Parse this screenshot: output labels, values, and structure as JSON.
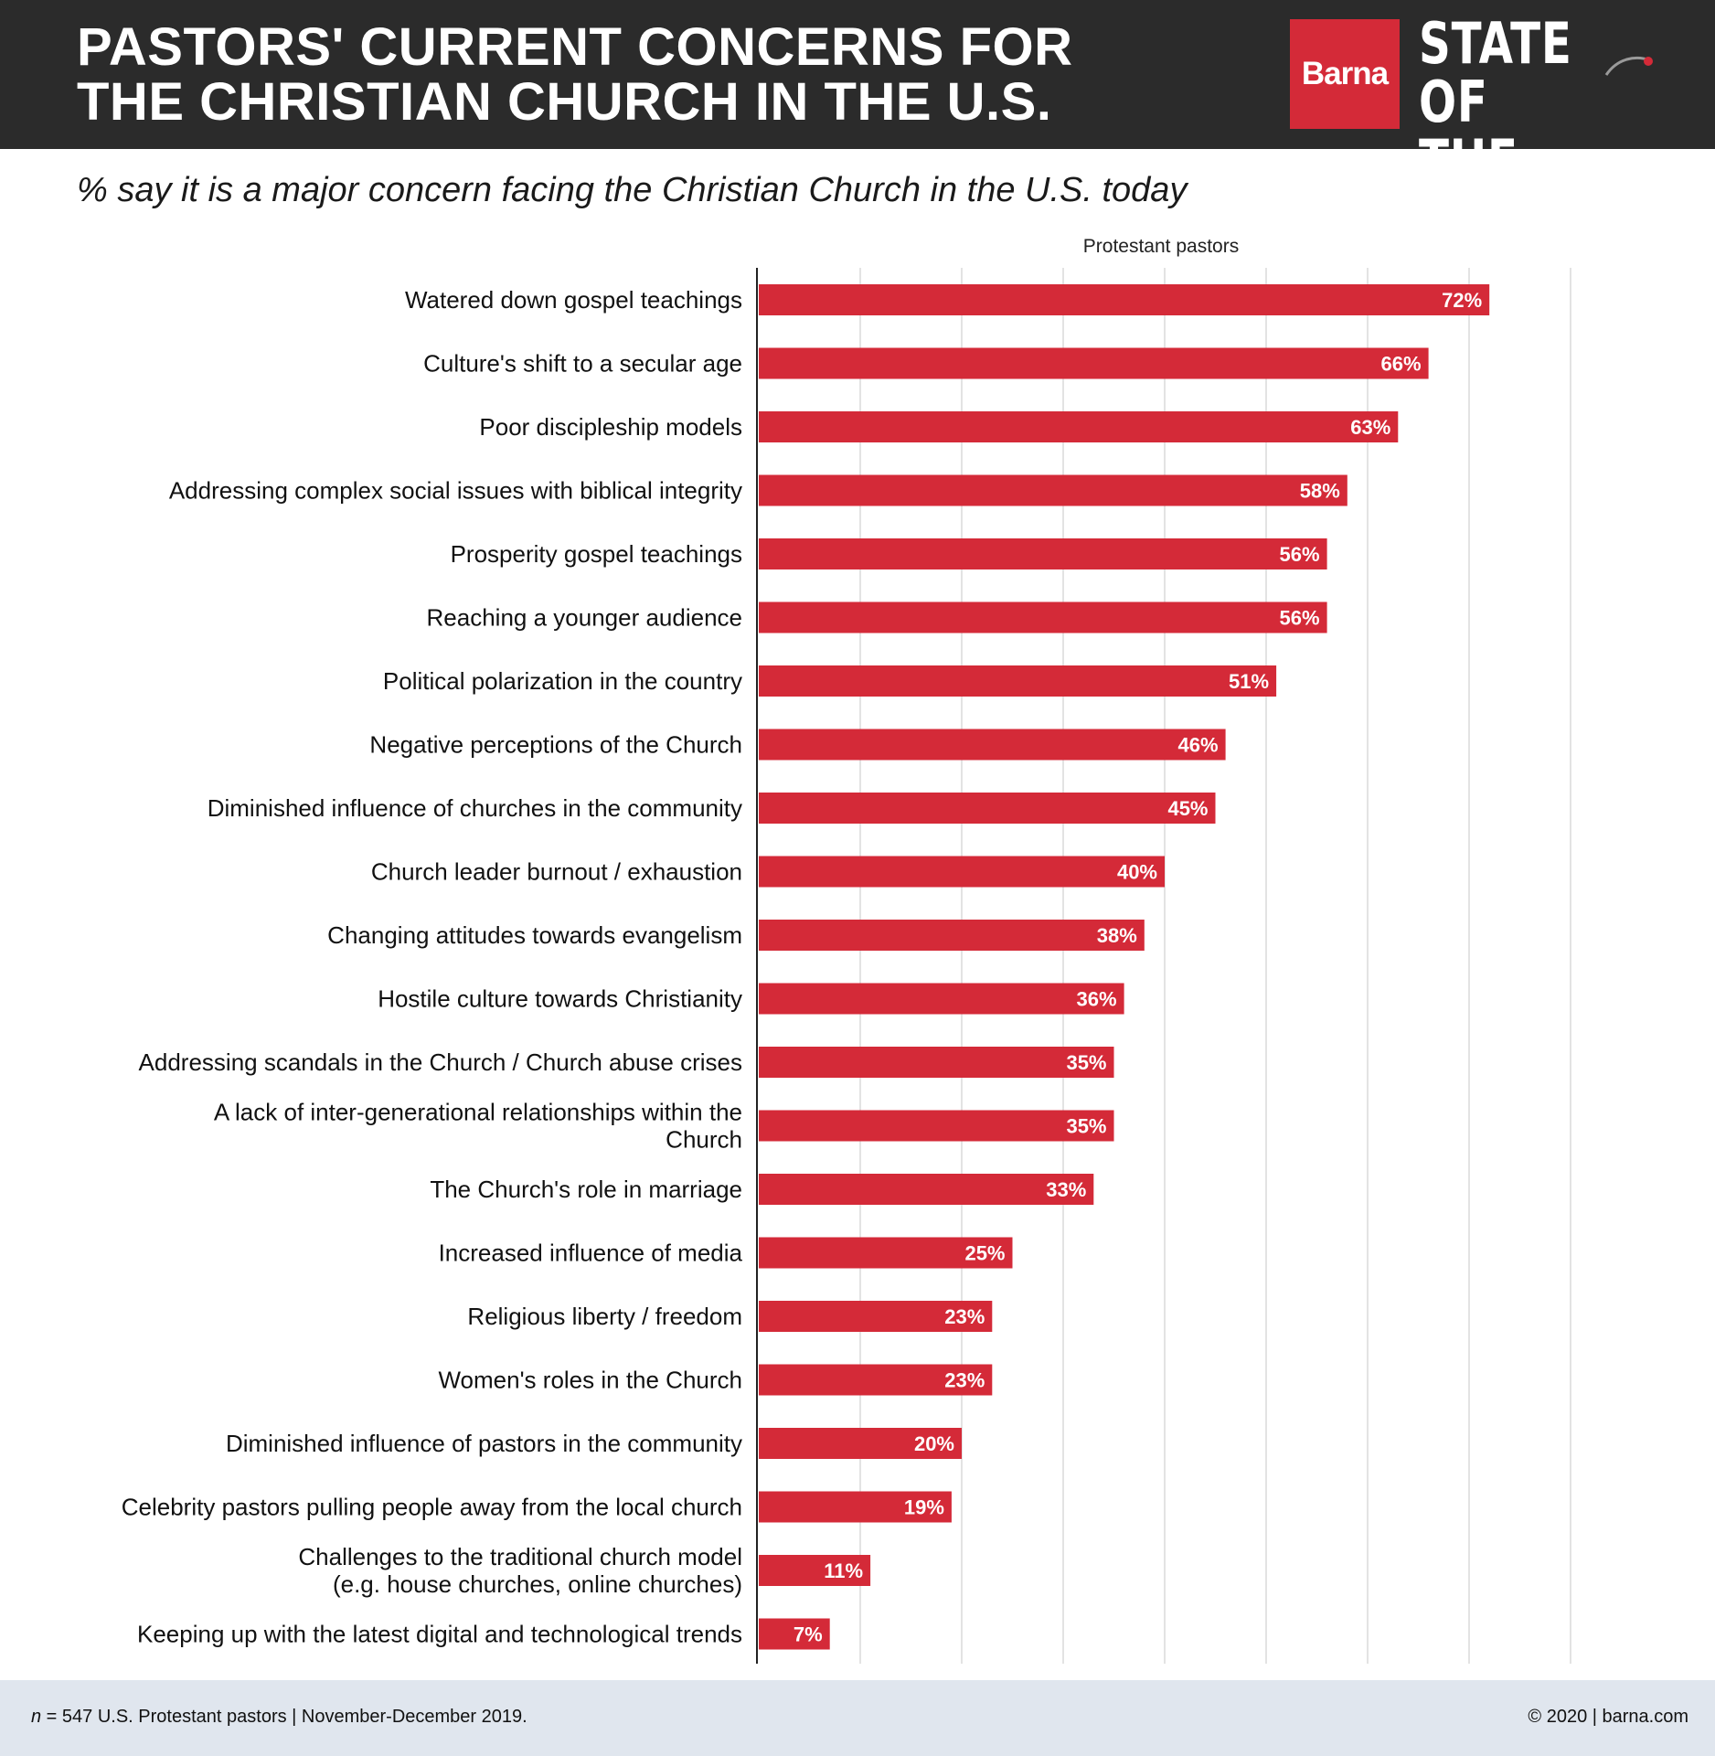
{
  "header": {
    "title_line1": "PASTORS' CURRENT CONCERNS FOR",
    "title_line2": "THE CHRISTIAN CHURCH IN THE U.S.",
    "logo_brand": "Barna",
    "report_line1": "STATE OF",
    "report_line2": "THE CHURCH"
  },
  "subtitle": "% say it is a major concern facing the Christian Church in the U.S. today",
  "chart_data": {
    "type": "bar",
    "orientation": "horizontal",
    "series": [
      {
        "name": "Protestant pastors",
        "values": [
          72,
          66,
          63,
          58,
          56,
          56,
          51,
          46,
          45,
          40,
          38,
          36,
          35,
          35,
          33,
          25,
          23,
          23,
          20,
          19,
          11,
          7
        ]
      }
    ],
    "categories": [
      "Watered down gospel teachings",
      "Culture's shift to a secular age",
      "Poor discipleship models",
      "Addressing complex social issues with biblical integrity",
      "Prosperity gospel teachings",
      "Reaching a younger audience",
      "Political polarization in the country",
      "Negative perceptions of the Church",
      "Diminished influence of churches in the community",
      "Church leader burnout / exhaustion",
      "Changing attitudes towards evangelism",
      "Hostile culture towards Christianity",
      "Addressing scandals in the Church / Church abuse crises",
      "A lack of inter-generational relationships within the Church",
      "The Church's role in marriage",
      "Increased influence of media",
      "Religious liberty / freedom",
      "Women's roles in the Church",
      "Diminished influence of pastors in the community",
      "Celebrity pastors pulling people away from the local church",
      "Challenges to the traditional church model (e.g. house churches, online churches)",
      "Keeping up with the latest digital and technological trends"
    ],
    "category_lines": [
      [
        "Watered down gospel teachings"
      ],
      [
        "Culture's shift to a secular age"
      ],
      [
        "Poor discipleship models"
      ],
      [
        "Addressing complex social issues with biblical integrity"
      ],
      [
        "Prosperity gospel teachings"
      ],
      [
        "Reaching a younger audience"
      ],
      [
        "Political polarization in the country"
      ],
      [
        "Negative perceptions of the Church"
      ],
      [
        "Diminished influence of churches in the community"
      ],
      [
        "Church leader burnout / exhaustion"
      ],
      [
        "Changing attitudes towards evangelism"
      ],
      [
        "Hostile culture towards Christianity"
      ],
      [
        "Addressing scandals in the Church / Church abuse crises"
      ],
      [
        "A lack of inter-generational relationships within the",
        "Church"
      ],
      [
        "The Church's role in marriage"
      ],
      [
        "Increased influence of media"
      ],
      [
        "Religious liberty / freedom"
      ],
      [
        "Women's roles in the Church"
      ],
      [
        "Diminished influence of pastors in the community"
      ],
      [
        "Celebrity pastors pulling people away from the local church"
      ],
      [
        "Challenges to the traditional church model",
        "(e.g. house churches, online churches)"
      ],
      [
        "Keeping up with the latest digital and technological trends"
      ]
    ],
    "value_labels": [
      "72%",
      "66%",
      "63%",
      "58%",
      "56%",
      "56%",
      "51%",
      "46%",
      "45%",
      "40%",
      "38%",
      "36%",
      "35%",
      "35%",
      "33%",
      "25%",
      "23%",
      "23%",
      "20%",
      "19%",
      "11%",
      "7%"
    ],
    "xlim": [
      0,
      80
    ],
    "grid": true,
    "bar_color": "#d42a38",
    "grid_color": "#e3e3e3"
  },
  "footer": {
    "footnote_n": "n",
    "footnote_rest": " = 547 U.S. Protestant pastors | November-December 2019.",
    "copyright": "© 2020 | barna.com"
  },
  "colors": {
    "header_bg": "#2b2b2b",
    "brand_red": "#d42a38",
    "footer_bg": "#e0e6ee"
  }
}
